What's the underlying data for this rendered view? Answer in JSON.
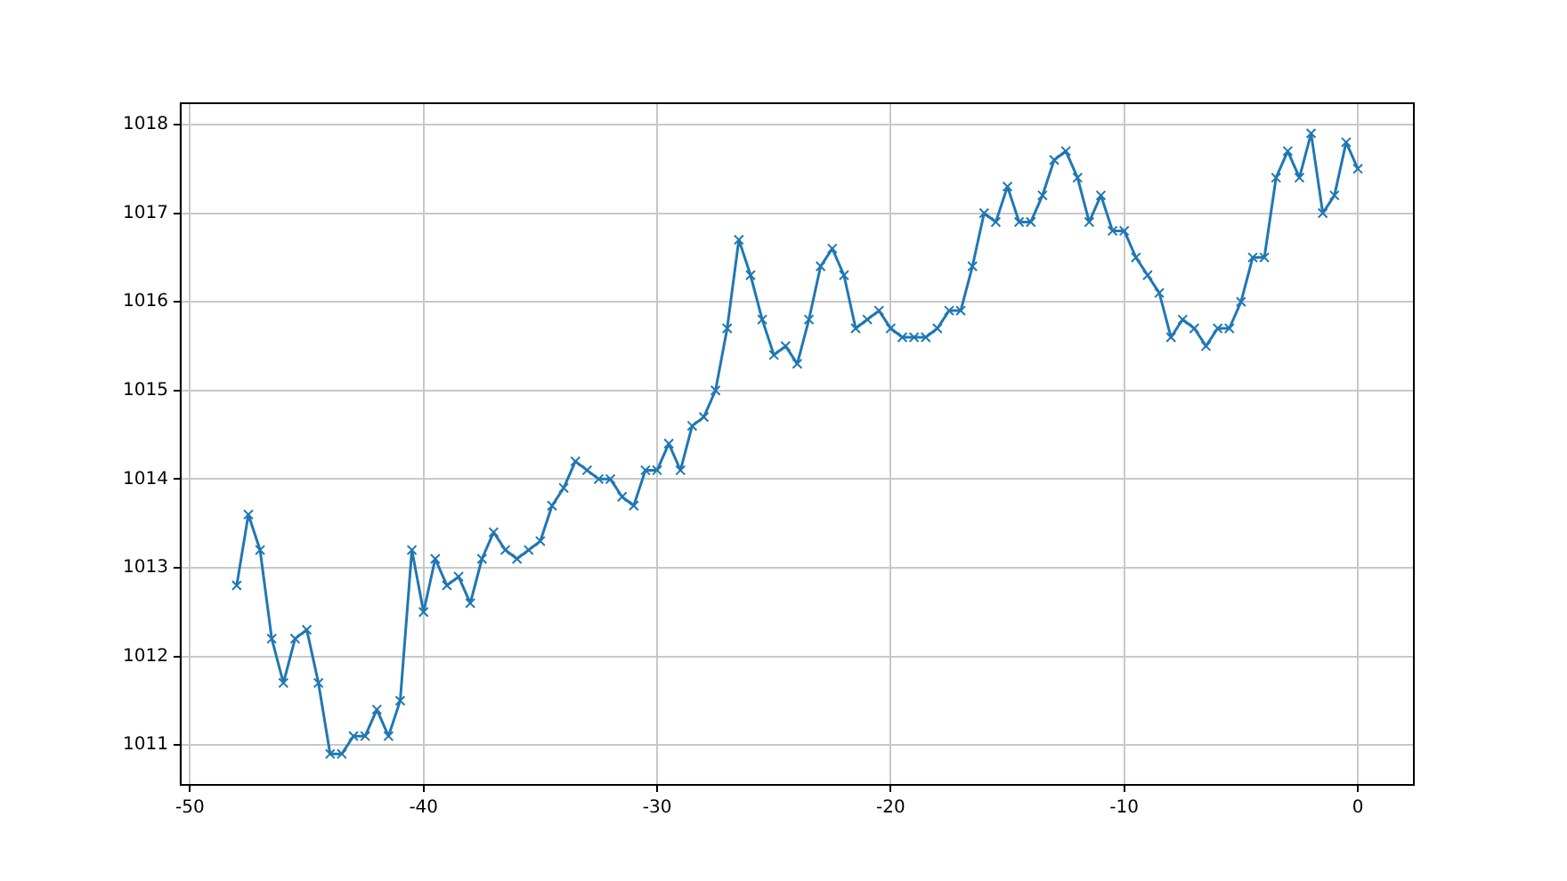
{
  "chart_data": {
    "type": "line",
    "x": [
      -48,
      -47.5,
      -47,
      -46.5,
      -46,
      -45.5,
      -45,
      -44.5,
      -44,
      -43.5,
      -43,
      -42.5,
      -42,
      -41.5,
      -41,
      -40.5,
      -40,
      -39.5,
      -39,
      -38.5,
      -38,
      -37.5,
      -37,
      -36.5,
      -36,
      -35.5,
      -35,
      -34.5,
      -34,
      -33.5,
      -33,
      -32.5,
      -32,
      -31.5,
      -31,
      -30.5,
      -30,
      -29.5,
      -29,
      -28.5,
      -28,
      -27.5,
      -27,
      -26.5,
      -26,
      -25.5,
      -25,
      -24.5,
      -24,
      -23.5,
      -23,
      -22.5,
      -22,
      -21.5,
      -21,
      -20.5,
      -20,
      -19.5,
      -19,
      -18.5,
      -18,
      -17.5,
      -17,
      -16.5,
      -16,
      -15.5,
      -15,
      -14.5,
      -14,
      -13.5,
      -13,
      -12.5,
      -12,
      -11.5,
      -11,
      -10.5,
      -10,
      -9.5,
      -9,
      -8.5,
      -8,
      -7.5,
      -7,
      -6.5,
      -6,
      -5.5,
      -5,
      -4.5,
      -4,
      -3.5,
      -3,
      -2.5,
      -2,
      -1.5,
      -1,
      -0.5,
      0
    ],
    "series": [
      {
        "color": "#1f77b4",
        "values": [
          1012.8,
          1013.6,
          1013.2,
          1012.2,
          1011.7,
          1012.2,
          1012.3,
          1011.7,
          1010.9,
          1010.9,
          1011.1,
          1011.1,
          1011.4,
          1011.1,
          1011.5,
          1013.2,
          1012.5,
          1013.1,
          1012.8,
          1012.9,
          1012.6,
          1013.1,
          1013.4,
          1013.2,
          1013.1,
          1013.2,
          1013.3,
          1013.7,
          1013.9,
          1014.2,
          1014.1,
          1014.0,
          1014.0,
          1013.8,
          1013.7,
          1014.1,
          1014.1,
          1014.4,
          1014.1,
          1014.6,
          1014.7,
          1015.0,
          1015.7,
          1016.7,
          1016.3,
          1015.8,
          1015.4,
          1015.5,
          1015.3,
          1015.8,
          1016.4,
          1016.6,
          1016.3,
          1015.7,
          1015.8,
          1015.9,
          1015.7,
          1015.6,
          1015.6,
          1015.6,
          1015.7,
          1015.9,
          1015.9,
          1016.4,
          1017.0,
          1016.9,
          1017.3,
          1016.9,
          1016.9,
          1017.2,
          1017.6,
          1017.7,
          1017.4,
          1016.9,
          1017.2,
          1016.8,
          1016.8,
          1016.5,
          1016.3,
          1016.1,
          1015.6,
          1015.8,
          1015.7,
          1015.5,
          1015.7,
          1015.7,
          1016.0,
          1016.5,
          1016.5,
          1017.4,
          1017.7,
          1017.4,
          1017.9,
          1017.0,
          1017.2,
          1017.8,
          1017.5
        ]
      }
    ],
    "xlim": [
      -50.4,
      2.4
    ],
    "xticks": [
      -50,
      -40,
      -30,
      -20,
      -10,
      0
    ],
    "ylim": [
      1010.55,
      1018.24
    ],
    "yticks": [
      1011,
      1012,
      1013,
      1014,
      1015,
      1016,
      1017,
      1018
    ],
    "grid": true,
    "marker": "cross",
    "line_style": "solid"
  }
}
